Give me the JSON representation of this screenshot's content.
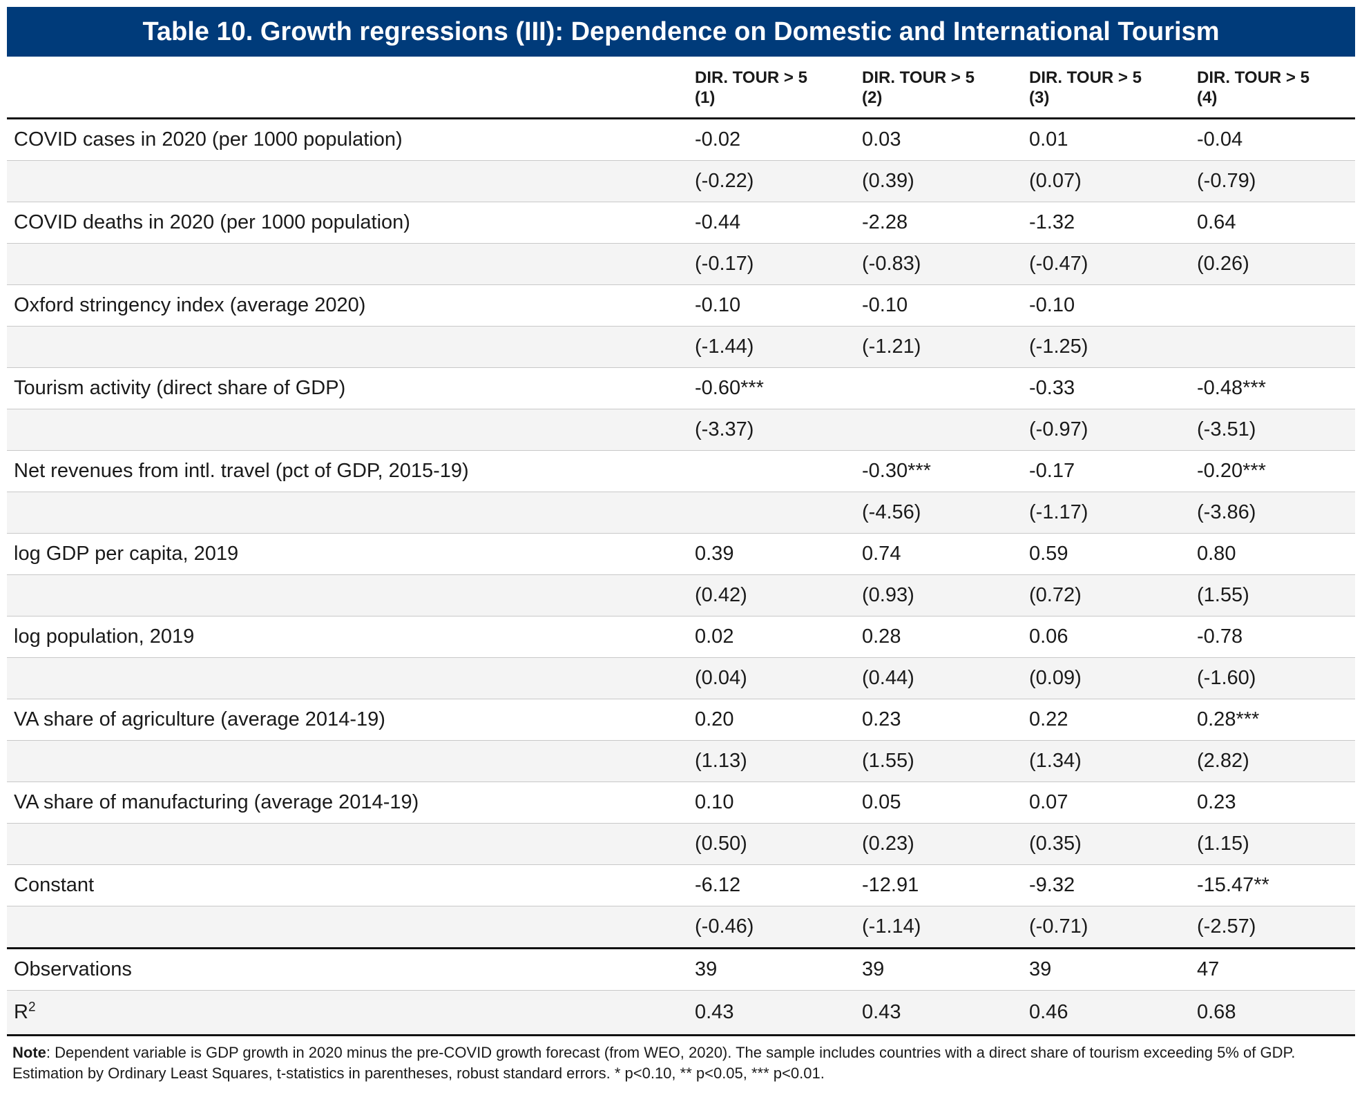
{
  "title": "Table 10. Growth regressions (III): Dependence on Domestic and International Tourism",
  "columns": [
    {
      "label": "DIR. TOUR > 5",
      "number": "(1)"
    },
    {
      "label": "DIR. TOUR > 5",
      "number": "(2)"
    },
    {
      "label": "DIR. TOUR > 5",
      "number": "(3)"
    },
    {
      "label": "DIR. TOUR > 5",
      "number": "(4)"
    }
  ],
  "rows": [
    {
      "label": "COVID cases in 2020 (per 1000 population)",
      "coef": [
        "-0.02",
        "0.03",
        "0.01",
        "-0.04"
      ],
      "tstat": [
        "(-0.22)",
        "(0.39)",
        "(0.07)",
        "(-0.79)"
      ]
    },
    {
      "label": "COVID deaths in 2020 (per 1000 population)",
      "coef": [
        "-0.44",
        "-2.28",
        "-1.32",
        "0.64"
      ],
      "tstat": [
        "(-0.17)",
        "(-0.83)",
        "(-0.47)",
        "(0.26)"
      ]
    },
    {
      "label": "Oxford stringency index (average 2020)",
      "coef": [
        "-0.10",
        "-0.10",
        "-0.10",
        ""
      ],
      "tstat": [
        "(-1.44)",
        "(-1.21)",
        "(-1.25)",
        ""
      ]
    },
    {
      "label": "Tourism activity (direct share of GDP)",
      "coef": [
        "-0.60***",
        "",
        "-0.33",
        "-0.48***"
      ],
      "tstat": [
        "(-3.37)",
        "",
        "(-0.97)",
        "(-3.51)"
      ]
    },
    {
      "label": "Net revenues from intl. travel (pct of GDP, 2015-19)",
      "coef": [
        "",
        "-0.30***",
        "-0.17",
        "-0.20***"
      ],
      "tstat": [
        "",
        "(-4.56)",
        "(-1.17)",
        "(-3.86)"
      ]
    },
    {
      "label": "log GDP per capita, 2019",
      "coef": [
        "0.39",
        "0.74",
        "0.59",
        "0.80"
      ],
      "tstat": [
        "(0.42)",
        "(0.93)",
        "(0.72)",
        "(1.55)"
      ]
    },
    {
      "label": "log population, 2019",
      "coef": [
        "0.02",
        "0.28",
        "0.06",
        "-0.78"
      ],
      "tstat": [
        "(0.04)",
        "(0.44)",
        "(0.09)",
        "(-1.60)"
      ]
    },
    {
      "label": "VA share of agriculture (average 2014-19)",
      "coef": [
        "0.20",
        "0.23",
        "0.22",
        "0.28***"
      ],
      "tstat": [
        "(1.13)",
        "(1.55)",
        "(1.34)",
        "(2.82)"
      ]
    },
    {
      "label": "VA share of manufacturing (average 2014-19)",
      "coef": [
        "0.10",
        "0.05",
        "0.07",
        "0.23"
      ],
      "tstat": [
        "(0.50)",
        "(0.23)",
        "(0.35)",
        "(1.15)"
      ]
    },
    {
      "label": "Constant",
      "coef": [
        "-6.12",
        "-12.91",
        "-9.32",
        "-15.47**"
      ],
      "tstat": [
        "(-0.46)",
        "(-1.14)",
        "(-0.71)",
        "(-2.57)"
      ]
    }
  ],
  "stats": {
    "observations": {
      "label": "Observations",
      "values": [
        "39",
        "39",
        "39",
        "47"
      ]
    },
    "r2": {
      "label": "R",
      "superscript": "2",
      "values": [
        "0.43",
        "0.43",
        "0.46",
        "0.68"
      ]
    }
  },
  "note": {
    "label": "Note",
    "text": ": Dependent variable is GDP growth in 2020 minus the pre-COVID growth forecast (from WEO, 2020). The sample includes countries with a direct share of tourism exceeding 5% of GDP. Estimation by Ordinary Least Squares, t-statistics in parentheses, robust standard errors. * p<0.10, ** p<0.05, *** p<0.01."
  }
}
